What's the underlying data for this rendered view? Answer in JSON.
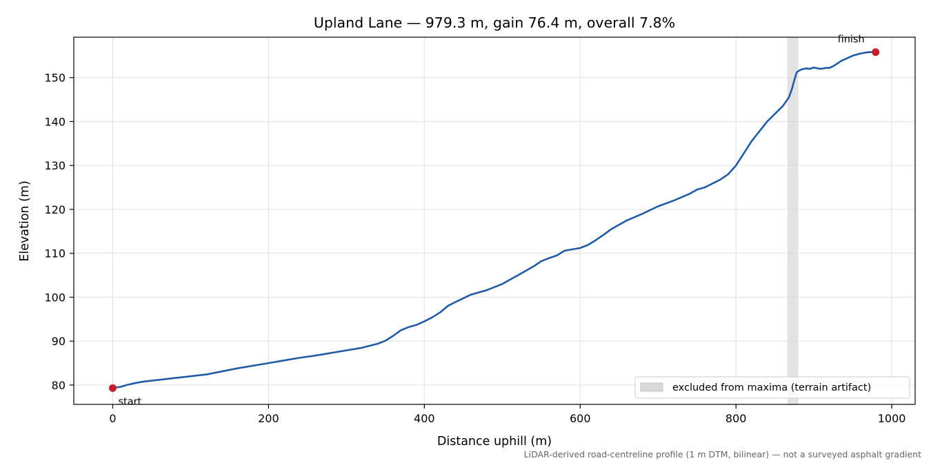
{
  "chart_data": {
    "type": "line",
    "title": "Upland Lane — 979.3 m, gain 76.4 m, overall 7.8%",
    "xlabel": "Distance uphill (m)",
    "ylabel": "Elevation (m)",
    "xlim": [
      -50,
      1030
    ],
    "ylim": [
      75.6,
      159.2
    ],
    "xticks": [
      0,
      200,
      400,
      600,
      800,
      1000
    ],
    "yticks": [
      80,
      90,
      100,
      110,
      120,
      130,
      140,
      150
    ],
    "grid": true,
    "legend_position": "lower-right",
    "colors": {
      "line": "#1f5aa6",
      "marker": "#c41e2a",
      "band": "#d9d9d9",
      "grid": "#e0e0e0"
    },
    "series": [
      {
        "x": [
          0,
          10,
          20,
          30,
          40,
          50,
          60,
          80,
          100,
          120,
          140,
          160,
          180,
          200,
          220,
          240,
          260,
          280,
          300,
          320,
          340,
          350,
          360,
          370,
          380,
          390,
          395,
          400,
          410,
          420,
          430,
          440,
          460,
          480,
          500,
          520,
          540,
          550,
          560,
          570,
          580,
          600,
          610,
          620,
          630,
          640,
          660,
          680,
          700,
          720,
          740,
          750,
          760,
          770,
          780,
          790,
          800,
          820,
          840,
          860,
          868,
          872,
          875,
          878,
          880,
          885,
          890,
          895,
          900,
          905,
          910,
          915,
          920,
          925,
          930,
          935,
          940,
          950,
          960,
          970,
          979.3
        ],
        "y": [
          79.3,
          79.6,
          80.1,
          80.5,
          80.8,
          81.0,
          81.2,
          81.6,
          82.0,
          82.4,
          83.1,
          83.8,
          84.4,
          85.0,
          85.6,
          86.2,
          86.7,
          87.3,
          87.9,
          88.5,
          89.4,
          90.1,
          91.2,
          92.5,
          93.2,
          93.7,
          94.1,
          94.5,
          95.4,
          96.5,
          98.0,
          98.9,
          100.6,
          101.6,
          103.0,
          105.0,
          107.0,
          108.2,
          108.9,
          109.5,
          110.6,
          111.2,
          111.9,
          113.0,
          114.2,
          115.5,
          117.5,
          119.0,
          120.7,
          122.0,
          123.5,
          124.5,
          125.0,
          125.9,
          126.8,
          128.0,
          130.0,
          135.5,
          140.0,
          143.5,
          145.5,
          147.5,
          149.5,
          151.2,
          151.5,
          151.9,
          152.1,
          152.0,
          152.3,
          152.1,
          152.0,
          152.2,
          152.2,
          152.6,
          153.2,
          153.8,
          154.2,
          155.0,
          155.5,
          155.8,
          155.8
        ]
      }
    ],
    "points": [
      {
        "label": "start",
        "x": 0,
        "y": 79.3
      },
      {
        "label": "finish",
        "x": 979.3,
        "y": 155.8
      }
    ],
    "excluded_band": {
      "x0": 866,
      "x1": 880,
      "label": "excluded from maxima (terrain artifact)"
    },
    "footnote": "LiDAR-derived road-centreline profile (1 m DTM, bilinear) — not a surveyed asphalt gradient"
  }
}
